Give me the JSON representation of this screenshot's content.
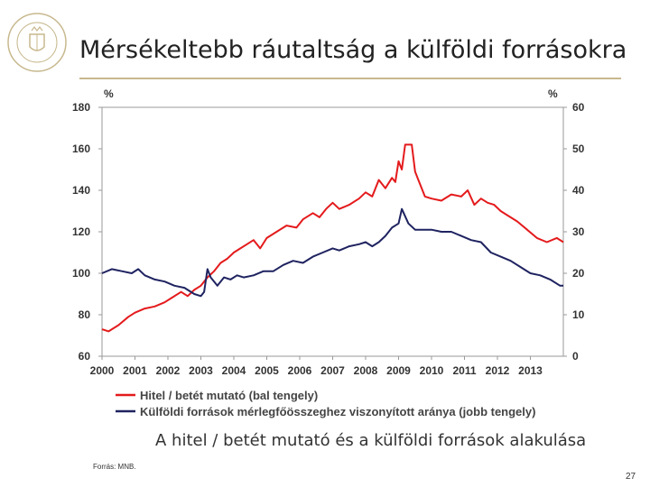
{
  "slide": {
    "title": "Mérsékeltebb ráutaltság a külföldi forrásokra",
    "caption": "A hitel / betét mutató és a külföldi források alakulása",
    "source": "Forrás: MNB.",
    "page_number": "27",
    "accent_color": "#c7b88d"
  },
  "logo": {
    "icon": "mnb-seal-logo"
  },
  "chart_data": {
    "type": "line",
    "x_ticks": [
      "2000",
      "2001",
      "2002",
      "2003",
      "2004",
      "2005",
      "2006",
      "2007",
      "2008",
      "2009",
      "2010",
      "2011",
      "2012",
      "2013"
    ],
    "xlim": [
      2000.0,
      2014.0
    ],
    "y_left": {
      "unit": "%",
      "ylim": [
        60,
        180
      ],
      "ticks": [
        "60",
        "80",
        "100",
        "120",
        "140",
        "160",
        "180"
      ]
    },
    "y_right": {
      "unit": "%",
      "ylim": [
        0,
        60
      ],
      "ticks": [
        "0",
        "10",
        "20",
        "30",
        "40",
        "50",
        "60"
      ]
    },
    "grid": false,
    "legend_position": "bottom",
    "series": [
      {
        "name": "Hitel / betét mutató (bal tengely)",
        "axis": "left",
        "color": "#e41a1c",
        "points": [
          [
            2000.0,
            73
          ],
          [
            2000.2,
            72
          ],
          [
            2000.5,
            75
          ],
          [
            2000.8,
            79
          ],
          [
            2001.0,
            81
          ],
          [
            2001.3,
            83
          ],
          [
            2001.6,
            84
          ],
          [
            2001.9,
            86
          ],
          [
            2002.1,
            88
          ],
          [
            2002.4,
            91
          ],
          [
            2002.6,
            89
          ],
          [
            2002.8,
            92
          ],
          [
            2003.0,
            94
          ],
          [
            2003.2,
            98
          ],
          [
            2003.4,
            101
          ],
          [
            2003.6,
            105
          ],
          [
            2003.8,
            107
          ],
          [
            2004.0,
            110
          ],
          [
            2004.2,
            112
          ],
          [
            2004.4,
            114
          ],
          [
            2004.6,
            116
          ],
          [
            2004.8,
            112
          ],
          [
            2005.0,
            117
          ],
          [
            2005.3,
            120
          ],
          [
            2005.6,
            123
          ],
          [
            2005.9,
            122
          ],
          [
            2006.1,
            126
          ],
          [
            2006.4,
            129
          ],
          [
            2006.6,
            127
          ],
          [
            2006.8,
            131
          ],
          [
            2007.0,
            134
          ],
          [
            2007.2,
            131
          ],
          [
            2007.5,
            133
          ],
          [
            2007.8,
            136
          ],
          [
            2008.0,
            139
          ],
          [
            2008.2,
            137
          ],
          [
            2008.4,
            145
          ],
          [
            2008.6,
            141
          ],
          [
            2008.8,
            146
          ],
          [
            2008.9,
            144
          ],
          [
            2009.0,
            154
          ],
          [
            2009.1,
            150
          ],
          [
            2009.2,
            162
          ],
          [
            2009.4,
            162
          ],
          [
            2009.5,
            149
          ],
          [
            2009.6,
            145
          ],
          [
            2009.8,
            137
          ],
          [
            2010.0,
            136
          ],
          [
            2010.3,
            135
          ],
          [
            2010.6,
            138
          ],
          [
            2010.9,
            137
          ],
          [
            2011.1,
            140
          ],
          [
            2011.3,
            133
          ],
          [
            2011.5,
            136
          ],
          [
            2011.7,
            134
          ],
          [
            2011.9,
            133
          ],
          [
            2012.1,
            130
          ],
          [
            2012.3,
            128
          ],
          [
            2012.6,
            125
          ],
          [
            2012.9,
            121
          ],
          [
            2013.2,
            117
          ],
          [
            2013.5,
            115
          ],
          [
            2013.8,
            117
          ],
          [
            2014.0,
            115
          ]
        ]
      },
      {
        "name": "Külföldi források mérlegfőösszeghez viszonyított aránya (jobb tengely)",
        "axis": "right",
        "color": "#1f2360",
        "points": [
          [
            2000.0,
            20
          ],
          [
            2000.3,
            21
          ],
          [
            2000.6,
            20.5
          ],
          [
            2000.9,
            20
          ],
          [
            2001.1,
            21
          ],
          [
            2001.3,
            19.5
          ],
          [
            2001.6,
            18.5
          ],
          [
            2001.9,
            18
          ],
          [
            2002.2,
            17
          ],
          [
            2002.5,
            16.5
          ],
          [
            2002.8,
            15
          ],
          [
            2003.0,
            14.5
          ],
          [
            2003.1,
            15.5
          ],
          [
            2003.2,
            21
          ],
          [
            2003.3,
            19
          ],
          [
            2003.5,
            17
          ],
          [
            2003.7,
            19
          ],
          [
            2003.9,
            18.5
          ],
          [
            2004.1,
            19.5
          ],
          [
            2004.3,
            19
          ],
          [
            2004.6,
            19.5
          ],
          [
            2004.9,
            20.5
          ],
          [
            2005.2,
            20.5
          ],
          [
            2005.5,
            22
          ],
          [
            2005.8,
            23
          ],
          [
            2006.1,
            22.5
          ],
          [
            2006.4,
            24
          ],
          [
            2006.7,
            25
          ],
          [
            2007.0,
            26
          ],
          [
            2007.2,
            25.5
          ],
          [
            2007.5,
            26.5
          ],
          [
            2007.8,
            27
          ],
          [
            2008.0,
            27.5
          ],
          [
            2008.2,
            26.5
          ],
          [
            2008.4,
            27.5
          ],
          [
            2008.6,
            29
          ],
          [
            2008.8,
            31
          ],
          [
            2009.0,
            32
          ],
          [
            2009.1,
            35.5
          ],
          [
            2009.3,
            32
          ],
          [
            2009.5,
            30.5
          ],
          [
            2009.8,
            30.5
          ],
          [
            2010.0,
            30.5
          ],
          [
            2010.3,
            30
          ],
          [
            2010.6,
            30
          ],
          [
            2010.9,
            29
          ],
          [
            2011.2,
            28
          ],
          [
            2011.5,
            27.5
          ],
          [
            2011.8,
            25
          ],
          [
            2012.1,
            24
          ],
          [
            2012.4,
            23
          ],
          [
            2012.7,
            21.5
          ],
          [
            2013.0,
            20
          ],
          [
            2013.3,
            19.5
          ],
          [
            2013.6,
            18.5
          ],
          [
            2013.9,
            17
          ],
          [
            2014.0,
            17
          ]
        ]
      }
    ]
  }
}
